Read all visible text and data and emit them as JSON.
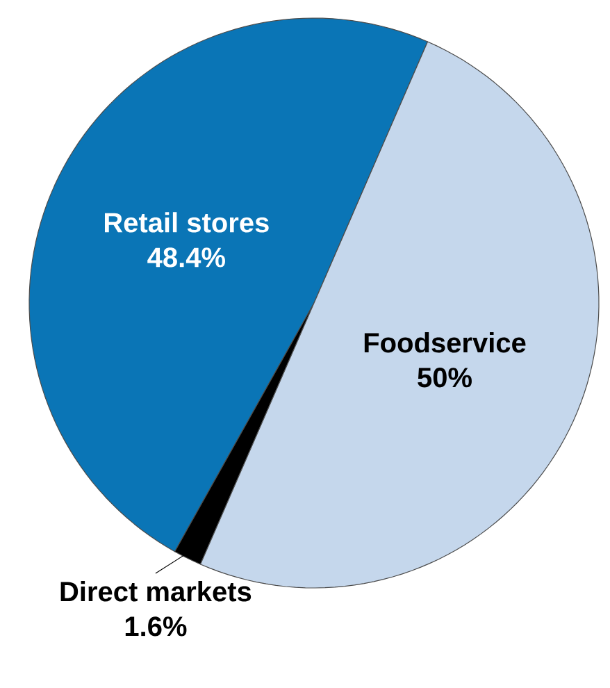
{
  "chart_data": {
    "type": "pie",
    "categories": [
      "Retail stores",
      "Direct markets",
      "Foodservice"
    ],
    "values": [
      48.4,
      1.6,
      50
    ],
    "colors": [
      "#0a75b6",
      "#000000",
      "#c5d7ec"
    ],
    "value_labels": [
      "48.4%",
      "1.6%",
      "50%"
    ]
  }
}
